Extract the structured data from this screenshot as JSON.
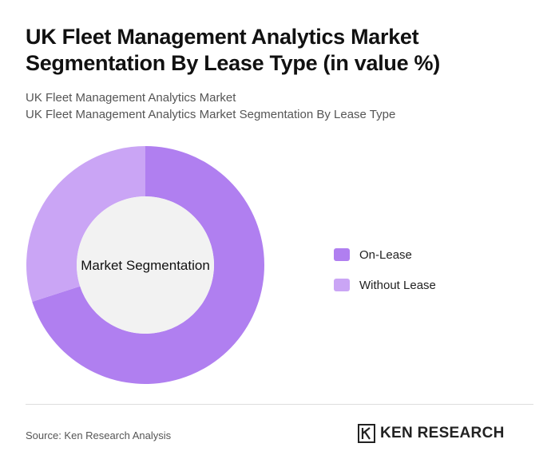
{
  "title": "UK Fleet Management Analytics Market Segmentation By Lease Type (in value %)",
  "subtitle_line1": "UK Fleet Management Analytics Market",
  "subtitle_line2": "UK Fleet Management Analytics Market Segmentation By Lease Type",
  "source": "Source: Ken Research Analysis",
  "brand": {
    "name": "KEN RESEARCH",
    "logo_icon": "ken-research-k-logo"
  },
  "chart_data": {
    "type": "pie",
    "style": "donut",
    "center_label": "Market Segmentation",
    "legend_position": "right",
    "categories": [
      "On-Lease",
      "Without Lease"
    ],
    "values": [
      70,
      30
    ],
    "colors": [
      "#b07ff0",
      "#caa5f5"
    ]
  }
}
